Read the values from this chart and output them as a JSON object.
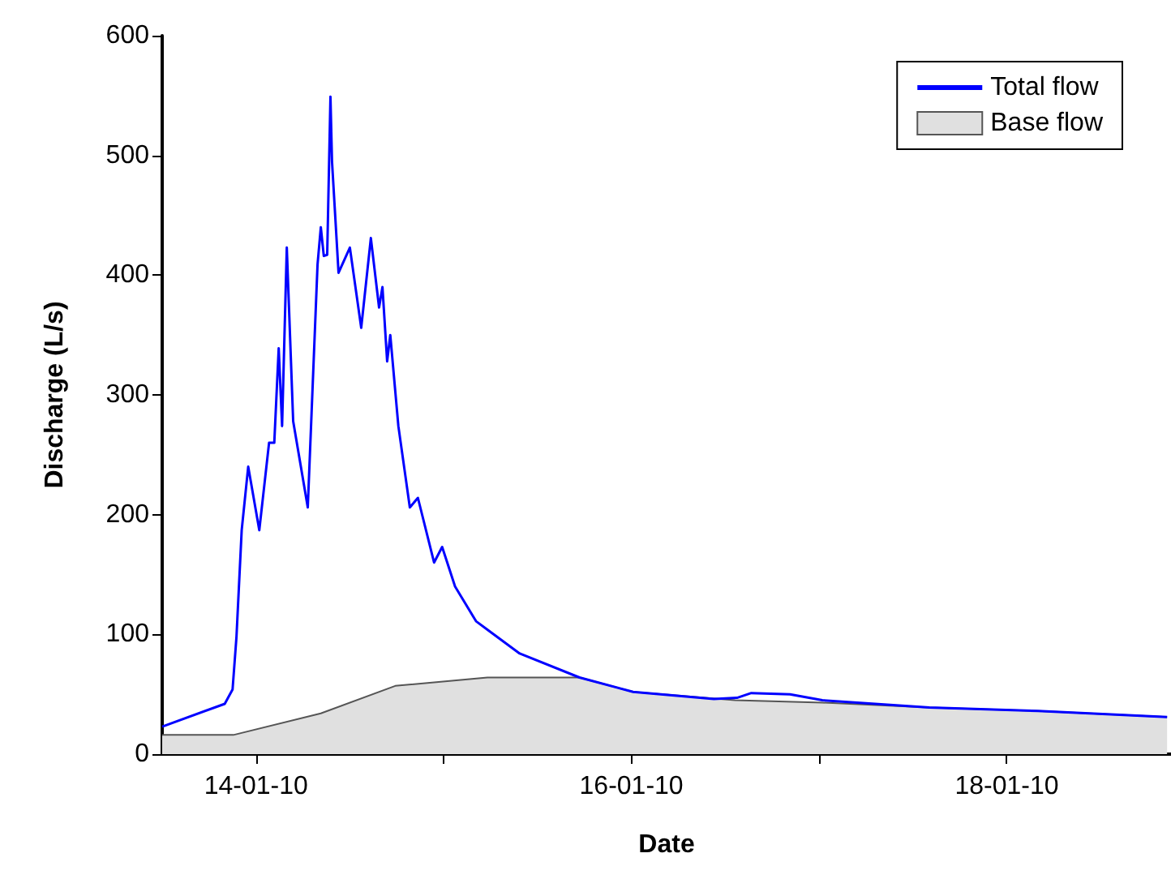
{
  "chart_data": {
    "type": "line",
    "xlabel": "Date",
    "ylabel": "Discharge (L/s)",
    "xlim": [
      "--01-13T12:00",
      "--01-18T21:00"
    ],
    "xticks": [
      {
        "value": "--01-14",
        "label": "14-01-10"
      },
      {
        "value": "--01-15",
        "label": null
      },
      {
        "value": "--01-16",
        "label": "16-01-10"
      },
      {
        "value": "--01-17",
        "label": null
      },
      {
        "value": "--01-18",
        "label": "18-01-10"
      }
    ],
    "ylim": [
      0,
      600
    ],
    "yticks": [
      0,
      100,
      200,
      300,
      400,
      500,
      600
    ],
    "grid": false,
    "legend": "top right",
    "marker": "none",
    "line_style": "solid",
    "series": [
      {
        "name": "Total flow",
        "color": "#0000ff",
        "x": [
          "--01-13T12:00",
          "--01-13T20:00",
          "--01-13T21:00",
          "--01-13T21:30",
          "--01-13T22:10",
          "--01-13T23:00",
          "--01-14T00:25",
          "--01-14T01:40",
          "--01-14T02:20",
          "--01-14T02:54",
          "--01-14T03:20",
          "--01-14T03:56",
          "--01-14T04:45",
          "--01-14T06:37",
          "--01-14T07:52",
          "--01-14T08:17",
          "--01-14T08:40",
          "--01-14T09:06",
          "--01-14T09:31",
          "--01-14T09:43",
          "--01-14T10:33",
          "--01-14T12:00",
          "--01-14T13:27",
          "--01-14T14:41",
          "--01-14T15:44",
          "--01-14T16:10",
          "--01-14T16:46",
          "--01-14T17:10",
          "--01-14T18:12",
          "--01-14T19:40",
          "--01-14T20:42",
          "--01-14T22:46",
          "--01-14T23:48",
          "--01-15T01:27",
          "--01-15T04:08",
          "--01-15T05:35",
          "--01-15T09:43",
          "--01-15T17:22",
          "--01-16T00:13",
          "--01-16T10:33",
          "--01-16T13:30",
          "--01-16T15:20",
          "--01-16T20:17",
          "--01-17T00:25",
          "--01-17T14:06",
          "--01-18T03:58",
          "--01-18T20:30"
        ],
        "values": [
          23,
          42,
          54,
          98,
          187,
          240,
          187,
          260,
          260,
          339,
          274,
          423,
          278,
          206,
          409,
          440,
          416,
          417,
          549,
          495,
          402,
          423,
          356,
          431,
          373,
          390,
          328,
          350,
          274,
          206,
          214,
          160,
          173,
          140,
          111,
          104,
          84,
          64,
          52,
          46,
          47,
          51,
          50,
          45,
          39,
          36,
          31
        ]
      },
      {
        "name": "Base flow",
        "type": "area",
        "color": "#e0e0e0",
        "x": [
          "--01-13T12:00",
          "--01-13T21:06",
          "--01-14T08:17",
          "--01-14T17:48",
          "--01-15T05:35",
          "--01-15T17:22",
          "--01-16T00:13",
          "--01-16T13:15",
          "--01-17T00:25",
          "--01-17T14:06",
          "--01-18T03:58",
          "--01-18T20:30"
        ],
        "values": [
          16,
          16,
          34,
          57,
          64,
          64,
          52,
          45,
          43,
          39,
          36,
          31
        ]
      }
    ]
  }
}
